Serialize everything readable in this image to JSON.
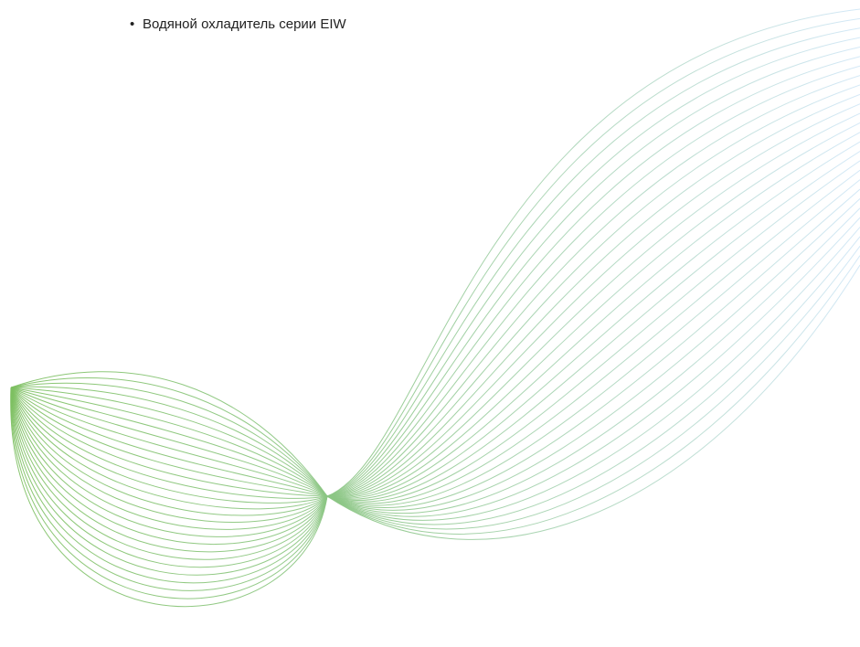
{
  "list": {
    "bullet": "•",
    "items": [
      {
        "label": "Водяной охладитель серии EIW"
      }
    ]
  },
  "decoration": {
    "name": "wave-lines",
    "color_start": "#7cbf5f",
    "color_end": "#cfe6f6",
    "line_count": 28
  }
}
